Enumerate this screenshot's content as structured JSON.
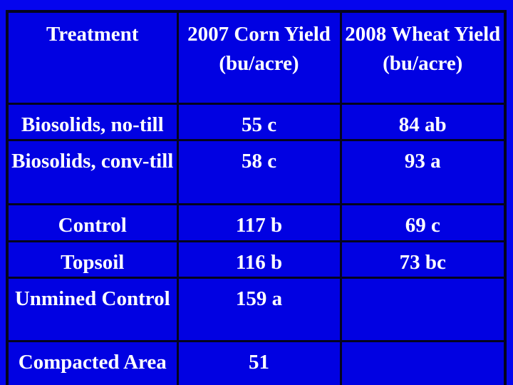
{
  "colors": {
    "background": "#0505ee",
    "cell_fill": "#0101e2",
    "border": "#04041f",
    "text": "#ffffff"
  },
  "chart_data": {
    "type": "table",
    "title": "",
    "columns": [
      "Treatment",
      "2007 Corn Yield (bu/acre)",
      "2008 Wheat Yield (bu/acre)"
    ],
    "rows": [
      [
        "Biosolids, no-till",
        "55 c",
        "84 ab"
      ],
      [
        "Biosolids, conv-till",
        "58 c",
        "93 a"
      ],
      [
        "Control",
        "117 b",
        "69 c"
      ],
      [
        "Topsoil",
        "116 b",
        "73 bc"
      ],
      [
        "Unmined Control",
        "159 a",
        ""
      ],
      [
        "Compacted Area",
        "51",
        ""
      ]
    ]
  },
  "table": {
    "headers": [
      {
        "title": "Treatment",
        "subtitle": ""
      },
      {
        "title": "2007 Corn Yield",
        "subtitle": "(bu/acre)"
      },
      {
        "title": "2008 Wheat Yield",
        "subtitle": "(bu/acre)"
      }
    ],
    "rows": [
      [
        "Biosolids, no-till",
        "55 c",
        "84 ab"
      ],
      [
        "Biosolids, conv-till",
        "58 c",
        "93 a"
      ],
      [
        "Control",
        "117 b",
        "69 c"
      ],
      [
        "Topsoil",
        "116 b",
        "73 bc"
      ],
      [
        "Unmined Control",
        "159 a",
        ""
      ],
      [
        "Compacted Area",
        "51",
        ""
      ]
    ]
  }
}
